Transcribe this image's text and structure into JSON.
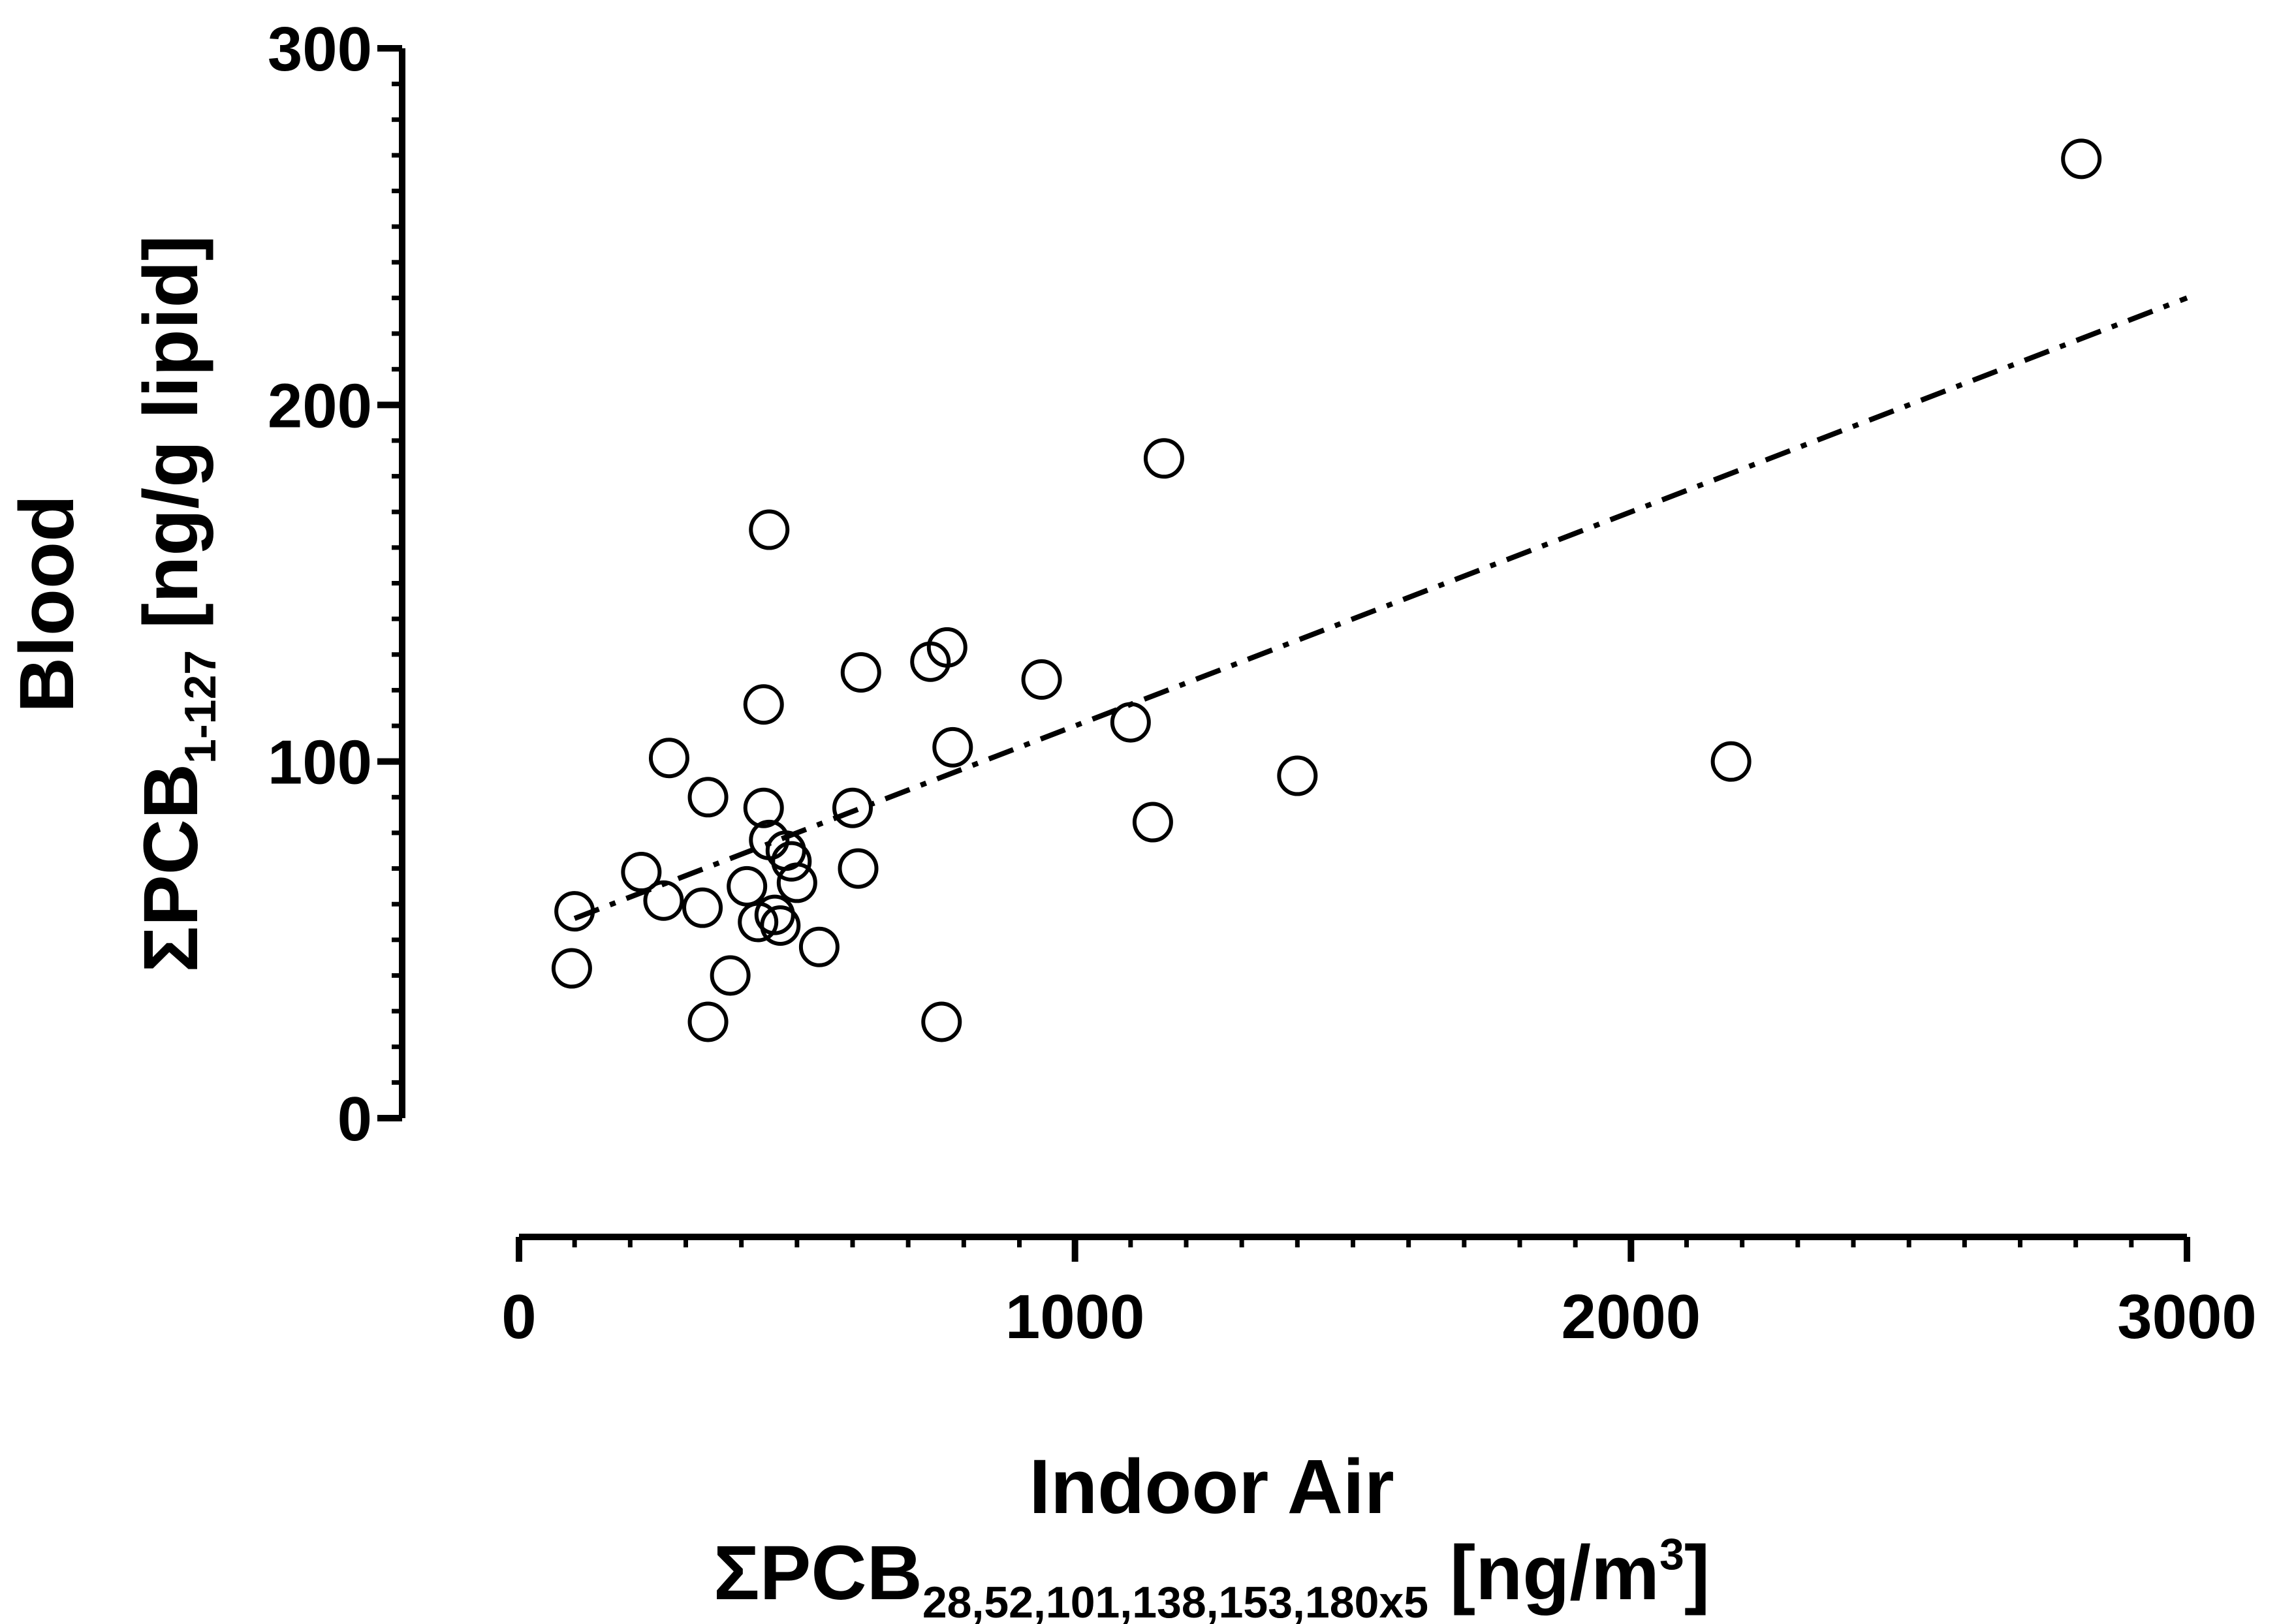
{
  "chart_data": {
    "type": "scatter",
    "title": "",
    "x_axis": {
      "title_line1": "Indoor Air",
      "title_line2": {
        "prefix": "ΣPCB",
        "subscript": "28,52,101,138,153,180x5",
        "unit_start": " [ng/m",
        "superscript": "3",
        "unit_end": "]"
      },
      "range": [
        0,
        3000
      ],
      "major_ticks": [
        0,
        1000,
        2000,
        3000
      ],
      "tick_labels": [
        "0",
        "1000",
        "2000",
        "3000"
      ],
      "minor_step": 100
    },
    "y_axis": {
      "title_line1": "Blood",
      "title_line2": {
        "prefix": "ΣPCB",
        "subscript": "1-127",
        "unit": " [ng/g lipid]"
      },
      "range": [
        0,
        300
      ],
      "major_ticks": [
        0,
        100,
        200,
        300
      ],
      "tick_labels": [
        "0",
        "100",
        "200",
        "300"
      ],
      "minor_step": 10
    },
    "marker": "open-circle",
    "points": [
      [
        95,
        42
      ],
      [
        100,
        58
      ],
      [
        220,
        69
      ],
      [
        260,
        61
      ],
      [
        270,
        101
      ],
      [
        330,
        59
      ],
      [
        340,
        90
      ],
      [
        340,
        27
      ],
      [
        380,
        40
      ],
      [
        410,
        65
      ],
      [
        430,
        55
      ],
      [
        440,
        87
      ],
      [
        440,
        116
      ],
      [
        450,
        165
      ],
      [
        450,
        78
      ],
      [
        460,
        57
      ],
      [
        470,
        54
      ],
      [
        480,
        75
      ],
      [
        490,
        72
      ],
      [
        500,
        66
      ],
      [
        540,
        48
      ],
      [
        600,
        87
      ],
      [
        610,
        70
      ],
      [
        615,
        125
      ],
      [
        740,
        128
      ],
      [
        770,
        132
      ],
      [
        760,
        27
      ],
      [
        780,
        104
      ],
      [
        940,
        123
      ],
      [
        1100,
        111
      ],
      [
        1140,
        83
      ],
      [
        1160,
        185
      ],
      [
        1400,
        96
      ],
      [
        2180,
        100
      ],
      [
        2810,
        269
      ]
    ],
    "trend_line": {
      "style": "dash-dot",
      "from": [
        100,
        56
      ],
      "to": [
        3000,
        230
      ]
    }
  },
  "colors": {
    "ink": "#000000",
    "background": "#ffffff"
  }
}
